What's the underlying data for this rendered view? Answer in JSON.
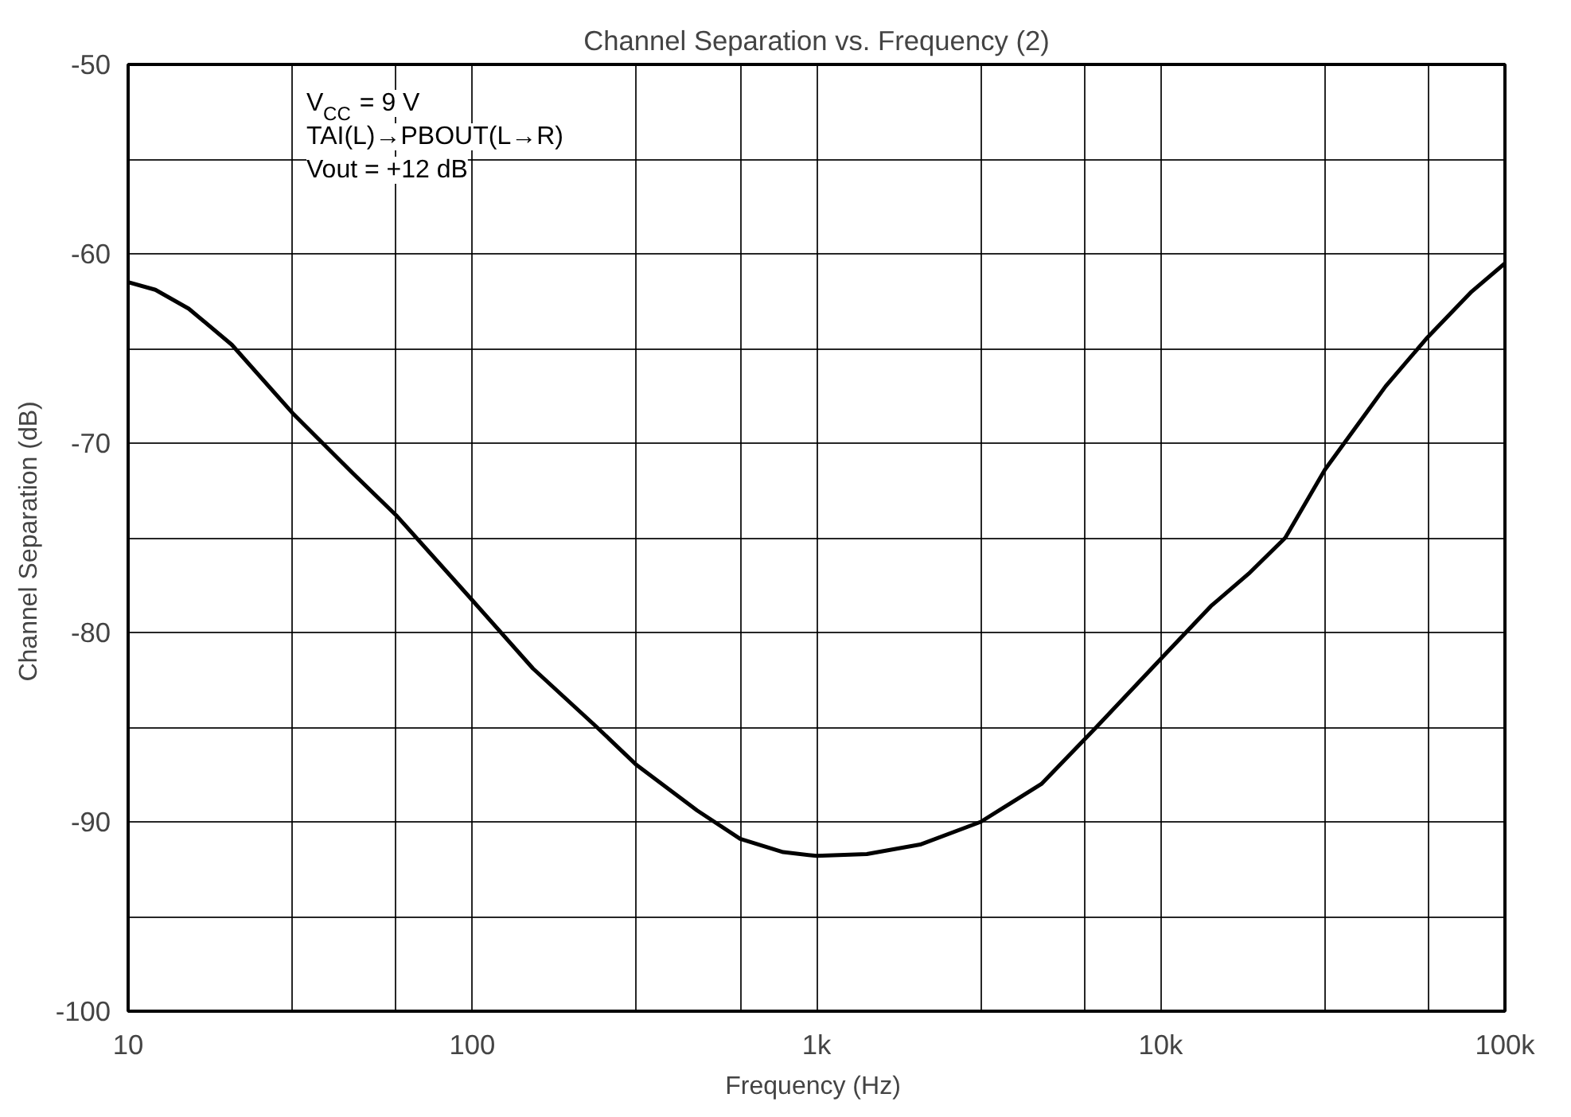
{
  "chart_data": {
    "type": "line",
    "title": "Channel Separation vs. Frequency (2)",
    "xlabel": "Frequency  (Hz)",
    "ylabel": "Channel Separation  (dB)",
    "annotations": [
      "V$_{CC}$ = 9 V",
      "TAI(L)→PBOUT(L→R)",
      "Vout = +12 dB"
    ],
    "log": "x",
    "grid": true,
    "marker": "none",
    "line_style": "solid",
    "xlim": [
      10,
      100000
    ],
    "ylim": [
      -100,
      -50
    ],
    "xticks": [
      10,
      {
        "value": 30,
        "label": null
      },
      {
        "value": 60,
        "label": null
      },
      100,
      {
        "value": 300,
        "label": null
      },
      {
        "value": 600,
        "label": null
      },
      {
        "value": 1000,
        "label": "1k"
      },
      {
        "value": 3000,
        "label": null
      },
      {
        "value": 6000,
        "label": null
      },
      {
        "value": 10000,
        "label": "10k"
      },
      {
        "value": 30000,
        "label": null
      },
      {
        "value": 60000,
        "label": null
      },
      {
        "value": 100000,
        "label": "100k"
      }
    ],
    "yticks": [
      -100,
      {
        "value": -95,
        "label": null
      },
      -90,
      {
        "value": -85,
        "label": null
      },
      -80,
      {
        "value": -75,
        "label": null
      },
      -70,
      {
        "value": -65,
        "label": null
      },
      -60,
      {
        "value": -55,
        "label": null
      },
      -50
    ],
    "series": [
      {
        "color": "#000000",
        "x": [
          10,
          12,
          15,
          20,
          30,
          45,
          60,
          100,
          150,
          230,
          300,
          450,
          600,
          800,
          1000,
          1400,
          2000,
          3000,
          4500,
          6500,
          10000,
          14000,
          18000,
          23000,
          30000,
          45000,
          59000,
          80000,
          100000
        ],
        "values": [
          -61.5,
          -61.9,
          -62.9,
          -64.8,
          -68.4,
          -71.6,
          -73.8,
          -78.3,
          -81.9,
          -85.0,
          -87.0,
          -89.4,
          -90.9,
          -91.6,
          -91.8,
          -91.7,
          -91.2,
          -90.0,
          -88.0,
          -85.0,
          -81.4,
          -78.6,
          -76.9,
          -75.0,
          -71.4,
          -67.0,
          -64.5,
          -62.0,
          -60.5
        ]
      }
    ]
  }
}
